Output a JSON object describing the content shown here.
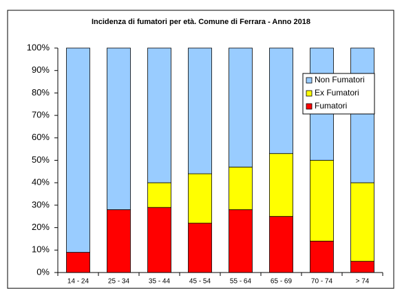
{
  "chart_data": {
    "type": "stacked_bar_100",
    "title": "Incidenza di fumatori per età. Comune di Ferrara - Anno 2018",
    "categories": [
      "14 - 24",
      "25 - 34",
      "35 - 44",
      "45 - 54",
      "55 - 64",
      "65 - 69",
      "70 - 74",
      "> 74"
    ],
    "series": [
      {
        "name": "Fumatori",
        "color": "#ff0000",
        "values": [
          9,
          28,
          29,
          22,
          28,
          25,
          14,
          5
        ]
      },
      {
        "name": "Ex Fumatori",
        "color": "#ffff00",
        "values": [
          0,
          0,
          11,
          22,
          19,
          28,
          36,
          35
        ]
      },
      {
        "name": "Non Fumatori",
        "color": "#99ccff",
        "values": [
          91,
          72,
          60,
          56,
          53,
          47,
          50,
          60
        ]
      }
    ],
    "ylim": [
      0,
      100
    ],
    "yticks": [
      {
        "value": 0,
        "label": "0%"
      },
      {
        "value": 10,
        "label": "10%"
      },
      {
        "value": 20,
        "label": "20%"
      },
      {
        "value": 30,
        "label": "30%"
      },
      {
        "value": 40,
        "label": "40%"
      },
      {
        "value": 50,
        "label": "50%"
      },
      {
        "value": 60,
        "label": "60%"
      },
      {
        "value": 70,
        "label": "70%"
      },
      {
        "value": 80,
        "label": "80%"
      },
      {
        "value": 90,
        "label": "90%"
      },
      {
        "value": 100,
        "label": "100%"
      }
    ],
    "grid": false,
    "legend": "right"
  }
}
